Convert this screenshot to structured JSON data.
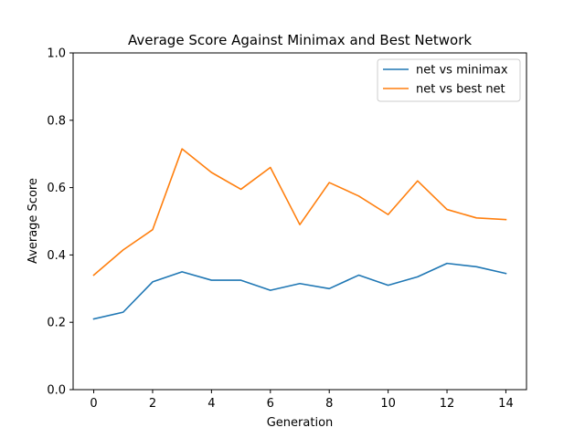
{
  "chart_data": {
    "type": "line",
    "title": "Average Score Against Minimax and Best Network",
    "xlabel": "Generation",
    "ylabel": "Average Score",
    "x": [
      0,
      1,
      2,
      3,
      4,
      5,
      6,
      7,
      8,
      9,
      10,
      11,
      12,
      13,
      14
    ],
    "xlim": [
      -0.7,
      14.7
    ],
    "ylim": [
      0,
      1.0
    ],
    "xticks": [
      0,
      2,
      4,
      6,
      8,
      10,
      12,
      14
    ],
    "xtick_labels": [
      "0",
      "2",
      "4",
      "6",
      "8",
      "10",
      "12",
      "14"
    ],
    "yticks": [
      0,
      0.2,
      0.4,
      0.6,
      0.8,
      1.0
    ],
    "ytick_labels": [
      "0.0",
      "0.2",
      "0.4",
      "0.6",
      "0.8",
      "1.0"
    ],
    "grid": false,
    "legend_position": "top-right",
    "series": [
      {
        "name": "net vs minimax",
        "color": "#1f77b4",
        "values": [
          0.21,
          0.23,
          0.32,
          0.35,
          0.325,
          0.325,
          0.295,
          0.315,
          0.3,
          0.34,
          0.31,
          0.335,
          0.375,
          0.365,
          0.345
        ]
      },
      {
        "name": "net vs best net",
        "color": "#ff7f0e",
        "values": [
          0.34,
          0.415,
          0.475,
          0.715,
          0.645,
          0.595,
          0.66,
          0.49,
          0.615,
          0.575,
          0.52,
          0.62,
          0.535,
          0.51,
          0.505
        ]
      }
    ]
  }
}
